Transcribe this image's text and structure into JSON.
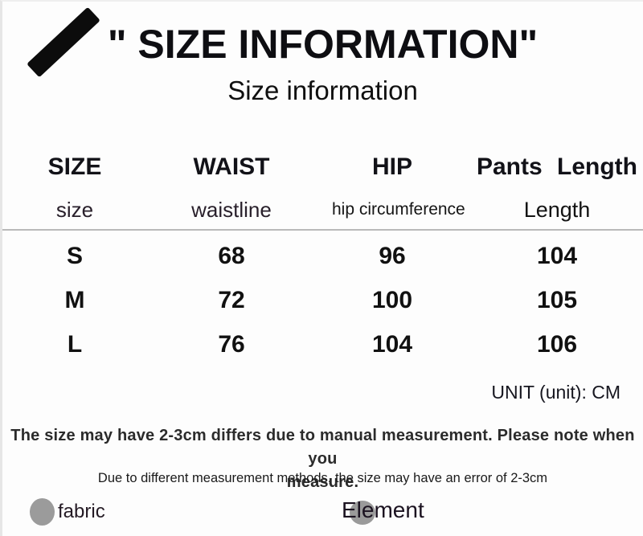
{
  "header": {
    "title": "\" SIZE INFORMATION\"",
    "subtitle": "Size information"
  },
  "table": {
    "headers": [
      "SIZE",
      "WAIST",
      "HIP",
      "Pants Length"
    ],
    "subheaders": [
      "size",
      "waistline",
      "hip circumference",
      "Length"
    ],
    "rows": [
      [
        "S",
        "68",
        "96",
        "104"
      ],
      [
        "M",
        "72",
        "100",
        "105"
      ],
      [
        "L",
        "76",
        "104",
        "106"
      ]
    ],
    "unit_note": "UNIT (unit): CM"
  },
  "notes": {
    "manual_line1": "The size may have 2-3cm differs due to manual measurement. Please note when you",
    "manual_line2": "measure.",
    "methods": "Due to different measurement methods, the size may have an error of 2-3cm"
  },
  "footer": {
    "fabric_label": "fabric",
    "element_label": "Element"
  },
  "colors": {
    "text": "#141414",
    "separator_line": "#b9b9b9",
    "gray_dot": "#9b9b9b",
    "brush_stroke": "#0c0c0c",
    "background": "#fdfdfd"
  },
  "chart_data": {
    "type": "table",
    "title": "\" SIZE INFORMATION\"",
    "subtitle": "Size information",
    "columns": [
      "SIZE",
      "WAIST",
      "HIP",
      "Pants Length"
    ],
    "column_subheaders": [
      "size",
      "waistline",
      "hip circumference",
      "Length"
    ],
    "rows": [
      {
        "size": "S",
        "waist": 68,
        "hip": 96,
        "pants_length": 104
      },
      {
        "size": "M",
        "waist": 72,
        "hip": 100,
        "pants_length": 105
      },
      {
        "size": "L",
        "waist": 76,
        "hip": 104,
        "pants_length": 106
      }
    ],
    "unit": "CM",
    "notes": [
      "The size may have 2-3cm differs due to manual measurement. Please note when you measure.",
      "Due to different measurement methods, the size may have an error of 2-3cm"
    ]
  }
}
